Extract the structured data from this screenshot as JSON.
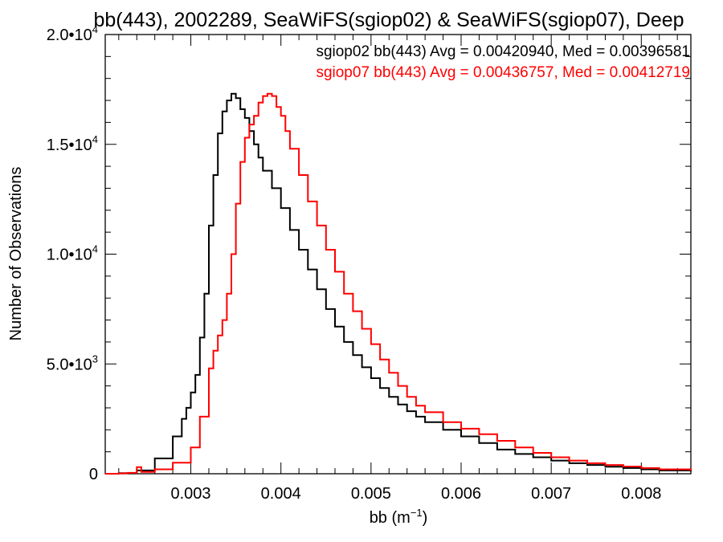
{
  "chart_data": {
    "type": "line",
    "step": true,
    "title": "bb(443), 2002289, SeaWiFS(sgiop02) & SeaWiFS(sgiop07), Deep",
    "xlabel": {
      "base": "bb (m",
      "sup": "−1",
      "close": ")"
    },
    "ylabel": "Number of Observations",
    "xlim": [
      0.00205,
      0.00855
    ],
    "ylim": [
      0,
      20000
    ],
    "x_ticks": [
      {
        "value": 0.003,
        "label": "0.003"
      },
      {
        "value": 0.004,
        "label": "0.004"
      },
      {
        "value": 0.005,
        "label": "0.005"
      },
      {
        "value": 0.006,
        "label": "0.006"
      },
      {
        "value": 0.007,
        "label": "0.007"
      },
      {
        "value": 0.008,
        "label": "0.008"
      }
    ],
    "y_ticks": [
      {
        "value": 0,
        "mant": "0",
        "exp": ""
      },
      {
        "value": 5000,
        "mant": "5.0•10",
        "exp": "3"
      },
      {
        "value": 10000,
        "mant": "1.0•10",
        "exp": "4"
      },
      {
        "value": 15000,
        "mant": "1.5•10",
        "exp": "4"
      },
      {
        "value": 20000,
        "mant": "2.0•10",
        "exp": "4"
      }
    ],
    "series": [
      {
        "name": "sgiop02 bb(443) Avg = 0.00420940, Med = 0.00396581",
        "color": "#000000",
        "x": [
          0.00205,
          0.0022,
          0.0024,
          0.0026,
          0.0028,
          0.0029,
          0.00295,
          0.003,
          0.00305,
          0.0031,
          0.00315,
          0.0032,
          0.00325,
          0.0033,
          0.00335,
          0.0034,
          0.00345,
          0.0035,
          0.00355,
          0.0036,
          0.00365,
          0.0037,
          0.00375,
          0.0038,
          0.0039,
          0.004,
          0.0041,
          0.0042,
          0.0043,
          0.0044,
          0.0045,
          0.0046,
          0.0047,
          0.0048,
          0.0049,
          0.005,
          0.0051,
          0.0052,
          0.0053,
          0.0054,
          0.0055,
          0.0056,
          0.0058,
          0.006,
          0.0062,
          0.0064,
          0.0066,
          0.0068,
          0.007,
          0.0072,
          0.0074,
          0.0076,
          0.0078,
          0.008,
          0.0082,
          0.00855
        ],
        "y": [
          0,
          30,
          150,
          700,
          1700,
          2500,
          3000,
          3700,
          4500,
          6200,
          8200,
          11300,
          13600,
          15500,
          16500,
          17000,
          17300,
          17100,
          16600,
          16200,
          15600,
          15000,
          14400,
          13800,
          13000,
          12100,
          11100,
          10200,
          9300,
          8400,
          7500,
          6700,
          6000,
          5400,
          4850,
          4350,
          3900,
          3500,
          3150,
          2850,
          2600,
          2350,
          2000,
          1700,
          1400,
          1100,
          900,
          750,
          600,
          480,
          400,
          320,
          260,
          200,
          150,
          100
        ]
      },
      {
        "name": "sgiop07 bb(443) Avg = 0.00436757, Med = 0.00412719",
        "color": "#ff0000",
        "x": [
          0.00205,
          0.0022,
          0.0023,
          0.0024,
          0.00245,
          0.0026,
          0.0028,
          0.003,
          0.0031,
          0.0032,
          0.00325,
          0.0033,
          0.00335,
          0.0034,
          0.00345,
          0.0035,
          0.00355,
          0.0036,
          0.00365,
          0.0037,
          0.00375,
          0.0038,
          0.00385,
          0.0039,
          0.00395,
          0.004,
          0.00405,
          0.0041,
          0.0042,
          0.0043,
          0.0044,
          0.0045,
          0.0046,
          0.0047,
          0.0048,
          0.0049,
          0.005,
          0.0051,
          0.0052,
          0.0053,
          0.0054,
          0.0055,
          0.0056,
          0.0058,
          0.006,
          0.0062,
          0.0064,
          0.0066,
          0.0068,
          0.007,
          0.0072,
          0.0074,
          0.0076,
          0.0078,
          0.008,
          0.0082,
          0.00855
        ],
        "y": [
          0,
          20,
          40,
          300,
          80,
          200,
          500,
          1200,
          2600,
          4800,
          5600,
          6300,
          7000,
          8200,
          10000,
          12300,
          14200,
          15300,
          15900,
          16300,
          16900,
          17200,
          17300,
          17200,
          16700,
          16300,
          15600,
          14800,
          13600,
          12400,
          11300,
          10200,
          9200,
          8200,
          7400,
          6600,
          5900,
          5200,
          4600,
          4000,
          3500,
          3100,
          2800,
          2350,
          2050,
          1800,
          1500,
          1200,
          950,
          750,
          600,
          480,
          400,
          330,
          260,
          200,
          140
        ]
      }
    ]
  }
}
